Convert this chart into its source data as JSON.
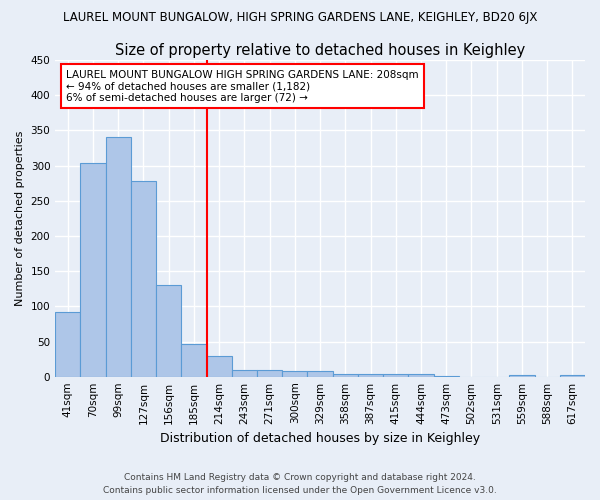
{
  "title": "LAUREL MOUNT BUNGALOW, HIGH SPRING GARDENS LANE, KEIGHLEY, BD20 6JX",
  "subtitle": "Size of property relative to detached houses in Keighley",
  "xlabel": "Distribution of detached houses by size in Keighley",
  "ylabel": "Number of detached properties",
  "categories": [
    "41sqm",
    "70sqm",
    "99sqm",
    "127sqm",
    "156sqm",
    "185sqm",
    "214sqm",
    "243sqm",
    "271sqm",
    "300sqm",
    "329sqm",
    "358sqm",
    "387sqm",
    "415sqm",
    "444sqm",
    "473sqm",
    "502sqm",
    "531sqm",
    "559sqm",
    "588sqm",
    "617sqm"
  ],
  "values": [
    92,
    303,
    340,
    278,
    130,
    46,
    30,
    10,
    10,
    8,
    8,
    4,
    4,
    4,
    4,
    1,
    0,
    0,
    2,
    0,
    2
  ],
  "bar_color": "#aec6e8",
  "bar_edge_color": "#5b9bd5",
  "marker_index": 6,
  "marker_label": "LAUREL MOUNT BUNGALOW HIGH SPRING GARDENS LANE: 208sqm",
  "marker_line1": "← 94% of detached houses are smaller (1,182)",
  "marker_line2": "6% of semi-detached houses are larger (72) →",
  "marker_color": "red",
  "annotation_box_color": "white",
  "annotation_border_color": "red",
  "ylim": [
    0,
    450
  ],
  "yticks": [
    0,
    50,
    100,
    150,
    200,
    250,
    300,
    350,
    400,
    450
  ],
  "footer1": "Contains HM Land Registry data © Crown copyright and database right 2024.",
  "footer2": "Contains public sector information licensed under the Open Government Licence v3.0.",
  "fig_bg_color": "#e8eef7",
  "axes_bg_color": "#e8eef7",
  "grid_color": "white",
  "title_fontsize": 8.5,
  "subtitle_fontsize": 10.5,
  "ylabel_fontsize": 8,
  "xlabel_fontsize": 9,
  "tick_fontsize": 7.5,
  "footer_fontsize": 6.5,
  "annotation_fontsize": 7.5
}
